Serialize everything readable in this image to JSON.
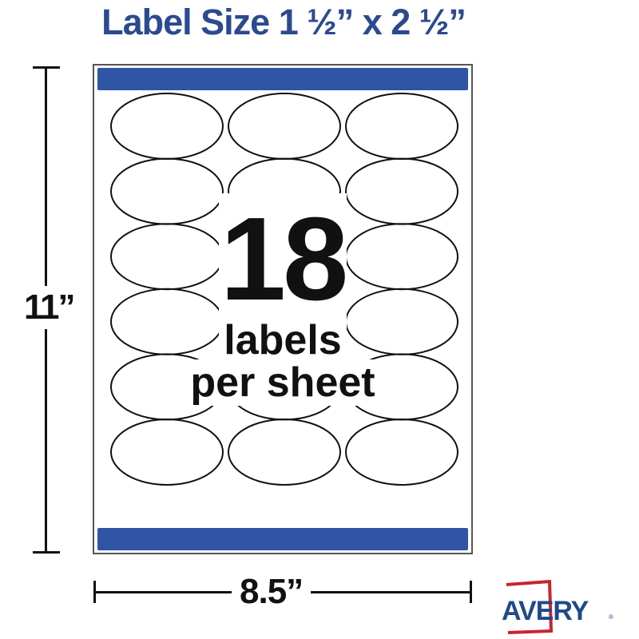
{
  "title": "Label Size 1 ½” x 2 ½”",
  "sheet": {
    "count": "18",
    "line1": "labels",
    "line2": "per sheet",
    "rows": 6,
    "columns": 3,
    "bar_color": "#2f55a4"
  },
  "dimensions": {
    "height": "11”",
    "width": "8.5”"
  },
  "brand": {
    "name": "AVERY",
    "text_color": "#1f4a8a",
    "frame_color": "#c8242f"
  },
  "title_color": "#2b4a8f"
}
